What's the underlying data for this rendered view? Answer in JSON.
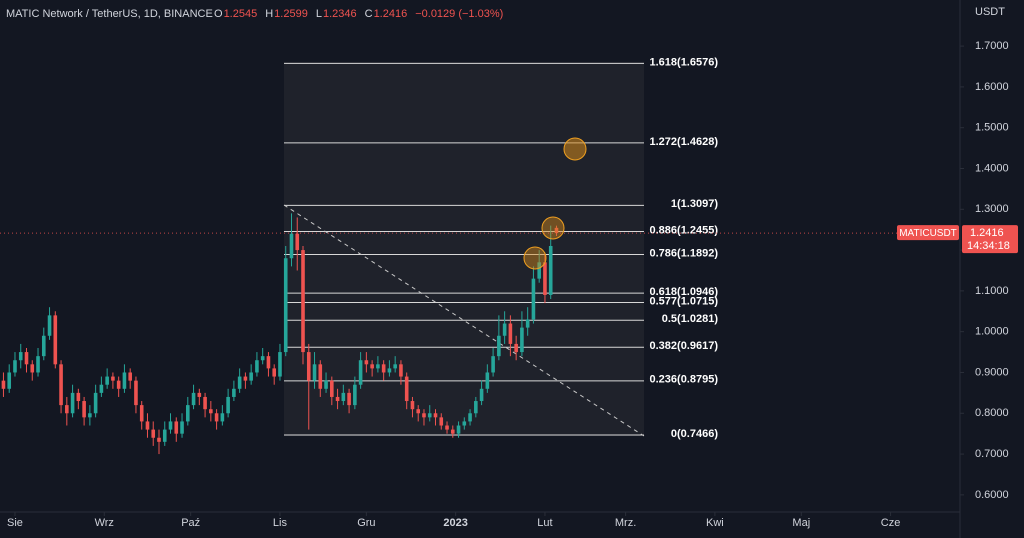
{
  "chart_data": {
    "type": "candlestick",
    "header": {
      "symbol": "MATIC Network / TetherUS, 1D, BINANCE",
      "fields": [
        {
          "label": "O",
          "value": "1.2545"
        },
        {
          "label": "H",
          "value": "1.2599"
        },
        {
          "label": "L",
          "value": "1.2346"
        },
        {
          "label": "C",
          "value": "1.2416"
        }
      ],
      "change": "−0.0129 (−1.03%)"
    },
    "y_axis_title": "USDT",
    "up_color": "#26a69a",
    "down_color": "#ef5350",
    "x": [
      -4,
      -2,
      0,
      2,
      4,
      6,
      8,
      10,
      12,
      14,
      16,
      18,
      20,
      22,
      24,
      26,
      28,
      30,
      32,
      34,
      36,
      38,
      40,
      42,
      44,
      46,
      48,
      50,
      52,
      54,
      56,
      58,
      60,
      62,
      64,
      66,
      68,
      70,
      72,
      74,
      76,
      78,
      80,
      82,
      84,
      86,
      88,
      90,
      92,
      94,
      96,
      98,
      100,
      102,
      104,
      106,
      108,
      110,
      112,
      114,
      116,
      118,
      120,
      122,
      124,
      126,
      128,
      130,
      132,
      134,
      136,
      138,
      140,
      142,
      144,
      146,
      148,
      150,
      152,
      154,
      156,
      158,
      160,
      162,
      164,
      166,
      168,
      170,
      172,
      174,
      176,
      178,
      180,
      182,
      184,
      186,
      188
    ],
    "open": [
      0.88,
      0.86,
      0.9,
      0.93,
      0.95,
      0.92,
      0.9,
      0.94,
      0.99,
      1.04,
      0.92,
      0.82,
      0.8,
      0.85,
      0.83,
      0.79,
      0.8,
      0.85,
      0.87,
      0.89,
      0.88,
      0.86,
      0.9,
      0.88,
      0.82,
      0.78,
      0.76,
      0.74,
      0.73,
      0.76,
      0.78,
      0.75,
      0.78,
      0.82,
      0.85,
      0.84,
      0.81,
      0.8,
      0.78,
      0.8,
      0.84,
      0.86,
      0.89,
      0.88,
      0.9,
      0.93,
      0.94,
      0.91,
      0.89,
      0.95,
      1.18,
      1.24,
      1.2,
      0.95,
      0.88,
      0.92,
      0.86,
      0.88,
      0.84,
      0.83,
      0.85,
      0.82,
      0.87,
      0.93,
      0.92,
      0.91,
      0.92,
      0.9,
      0.91,
      0.92,
      0.89,
      0.83,
      0.81,
      0.8,
      0.79,
      0.8,
      0.79,
      0.77,
      0.76,
      0.75,
      0.77,
      0.78,
      0.8,
      0.83,
      0.86,
      0.9,
      0.94,
      0.99,
      1.02,
      0.97,
      0.95,
      1.01,
      1.03,
      1.13,
      1.17,
      1.09,
      1.2545
    ],
    "high": [
      0.9,
      0.92,
      0.95,
      0.97,
      0.96,
      0.93,
      0.96,
      1.01,
      1.06,
      1.05,
      0.93,
      0.84,
      0.87,
      0.86,
      0.84,
      0.82,
      0.87,
      0.89,
      0.91,
      0.9,
      0.89,
      0.92,
      0.91,
      0.89,
      0.83,
      0.8,
      0.78,
      0.76,
      0.78,
      0.8,
      0.79,
      0.8,
      0.84,
      0.87,
      0.86,
      0.85,
      0.83,
      0.81,
      0.82,
      0.86,
      0.88,
      0.91,
      0.9,
      0.92,
      0.95,
      0.96,
      0.95,
      0.92,
      0.97,
      1.21,
      1.29,
      1.28,
      1.21,
      0.97,
      0.95,
      0.93,
      0.9,
      0.89,
      0.86,
      0.87,
      0.86,
      0.89,
      0.95,
      0.95,
      0.93,
      0.94,
      0.93,
      0.93,
      0.94,
      0.93,
      0.9,
      0.84,
      0.82,
      0.81,
      0.82,
      0.81,
      0.8,
      0.78,
      0.77,
      0.78,
      0.79,
      0.81,
      0.84,
      0.88,
      0.92,
      0.96,
      1.04,
      1.05,
      1.04,
      0.99,
      1.05,
      1.06,
      1.16,
      1.2,
      1.19,
      1.26,
      1.2599
    ],
    "low": [
      0.84,
      0.85,
      0.89,
      0.91,
      0.9,
      0.88,
      0.89,
      0.93,
      0.98,
      0.91,
      0.8,
      0.77,
      0.79,
      0.81,
      0.77,
      0.77,
      0.79,
      0.84,
      0.86,
      0.86,
      0.84,
      0.85,
      0.86,
      0.8,
      0.76,
      0.74,
      0.72,
      0.7,
      0.72,
      0.75,
      0.73,
      0.74,
      0.77,
      0.81,
      0.82,
      0.79,
      0.78,
      0.76,
      0.77,
      0.79,
      0.83,
      0.85,
      0.86,
      0.87,
      0.89,
      0.92,
      0.89,
      0.87,
      0.88,
      0.94,
      1.16,
      1.15,
      0.92,
      0.76,
      0.86,
      0.84,
      0.85,
      0.82,
      0.81,
      0.82,
      0.8,
      0.81,
      0.86,
      0.9,
      0.89,
      0.9,
      0.88,
      0.89,
      0.9,
      0.87,
      0.81,
      0.79,
      0.78,
      0.77,
      0.78,
      0.77,
      0.76,
      0.75,
      0.74,
      0.74,
      0.76,
      0.77,
      0.79,
      0.82,
      0.85,
      0.89,
      0.93,
      0.97,
      0.94,
      0.93,
      0.94,
      0.99,
      1.02,
      1.12,
      1.07,
      1.08,
      1.2346
    ],
    "close": [
      0.86,
      0.9,
      0.93,
      0.95,
      0.92,
      0.9,
      0.94,
      0.99,
      1.04,
      0.92,
      0.82,
      0.8,
      0.85,
      0.83,
      0.79,
      0.8,
      0.85,
      0.87,
      0.89,
      0.88,
      0.86,
      0.9,
      0.88,
      0.82,
      0.78,
      0.76,
      0.74,
      0.73,
      0.76,
      0.78,
      0.75,
      0.78,
      0.82,
      0.85,
      0.84,
      0.81,
      0.8,
      0.78,
      0.8,
      0.84,
      0.86,
      0.89,
      0.88,
      0.9,
      0.93,
      0.94,
      0.91,
      0.89,
      0.95,
      1.18,
      1.24,
      1.2,
      0.95,
      0.88,
      0.92,
      0.86,
      0.88,
      0.84,
      0.83,
      0.85,
      0.82,
      0.87,
      0.93,
      0.92,
      0.91,
      0.92,
      0.9,
      0.91,
      0.92,
      0.89,
      0.83,
      0.81,
      0.8,
      0.79,
      0.8,
      0.79,
      0.77,
      0.76,
      0.75,
      0.77,
      0.78,
      0.8,
      0.83,
      0.86,
      0.9,
      0.94,
      0.99,
      1.02,
      0.97,
      0.95,
      1.01,
      1.03,
      1.13,
      1.17,
      1.09,
      1.21,
      1.2416
    ],
    "xlim": [
      -5.2,
      328.1
    ],
    "xticks": [
      {
        "value": 0,
        "label": "Sie"
      },
      {
        "value": 31,
        "label": "Wrz"
      },
      {
        "value": 61,
        "label": "Paź"
      },
      {
        "value": 92,
        "label": "Lis"
      },
      {
        "value": 122,
        "label": "Gru"
      },
      {
        "value": 153,
        "label": "2023"
      },
      {
        "value": 184,
        "label": "Lut"
      },
      {
        "value": 212,
        "label": "Mrz."
      },
      {
        "value": 243,
        "label": "Kwi"
      },
      {
        "value": 273,
        "label": "Maj"
      },
      {
        "value": 304,
        "label": "Cze"
      }
    ],
    "ylim": [
      0.558,
      1.813
    ],
    "yticks": [
      {
        "value": 0.6,
        "label": "0.6000"
      },
      {
        "value": 0.7,
        "label": "0.7000"
      },
      {
        "value": 0.8,
        "label": "0.8000"
      },
      {
        "value": 0.9,
        "label": "0.9000"
      },
      {
        "value": 1.0,
        "label": "1.0000"
      },
      {
        "value": 1.1,
        "label": "1.1000"
      },
      {
        "value": 1.2,
        "label": "1.2000"
      },
      {
        "value": 1.3,
        "label": "1.3000"
      },
      {
        "value": 1.4,
        "label": "1.4000"
      },
      {
        "value": 1.5,
        "label": "1.5000"
      },
      {
        "value": 1.6,
        "label": "1.6000"
      },
      {
        "value": 1.7,
        "label": "1.7000"
      }
    ],
    "grid": false,
    "fib_levels": [
      {
        "value": 1.6576,
        "label": "1.618(1.6576)"
      },
      {
        "value": 1.4628,
        "label": "1.272(1.4628)"
      },
      {
        "value": 1.3097,
        "label": "1(1.3097)"
      },
      {
        "value": 1.2455,
        "label": "0.886(1.2455)"
      },
      {
        "value": 1.1892,
        "label": "0.786(1.1892)"
      },
      {
        "value": 1.0946,
        "label": "0.618(1.0946)"
      },
      {
        "value": 1.0715,
        "label": "0.577(1.0715)"
      },
      {
        "value": 1.0281,
        "label": "0.5(1.0281)"
      },
      {
        "value": 0.9617,
        "label": "0.382(0.9617)"
      },
      {
        "value": 0.8795,
        "label": "0.236(0.8795)"
      },
      {
        "value": 0.7466,
        "label": "0(0.7466)"
      }
    ],
    "price_tag": {
      "symbol": "MATICUSDT",
      "price": "1.2416",
      "countdown": "14:34:18"
    }
  }
}
